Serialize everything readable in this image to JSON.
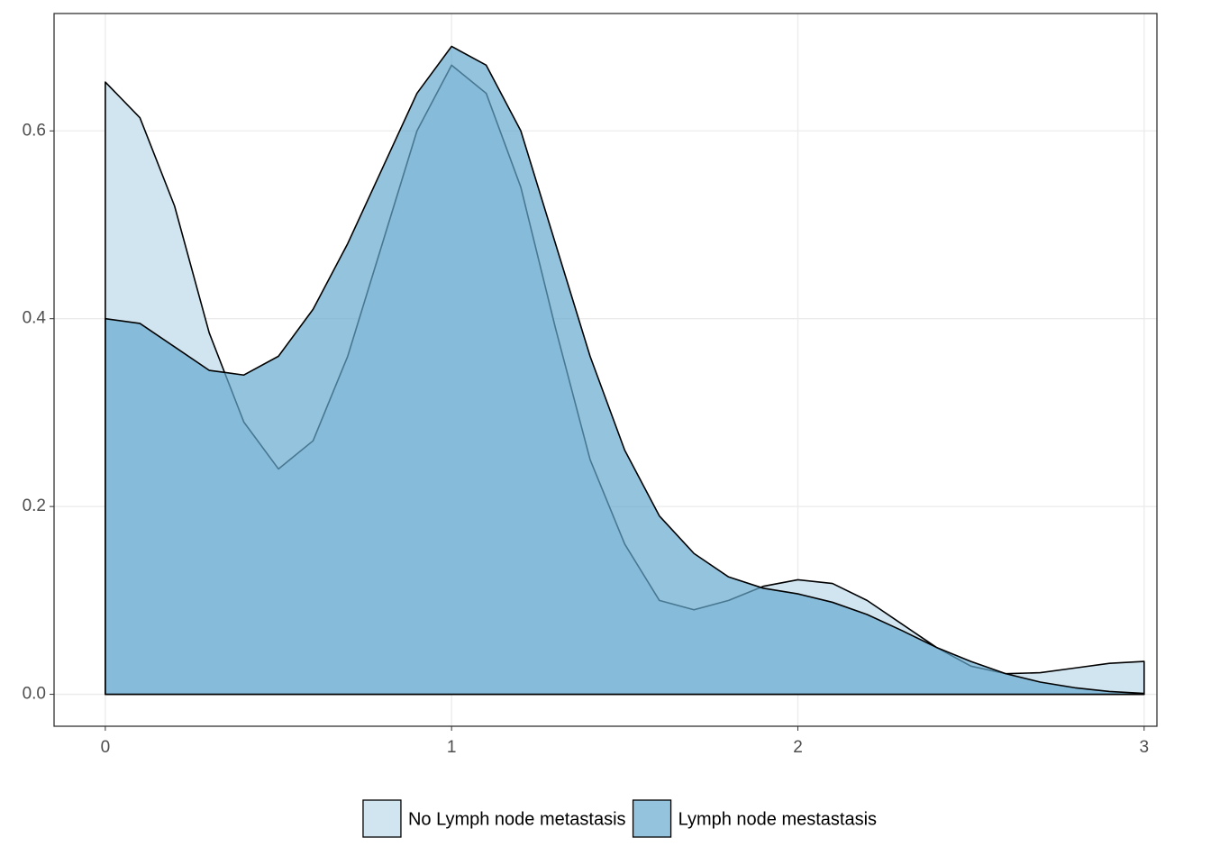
{
  "chart_data": {
    "type": "area",
    "x": [
      0,
      0.1,
      0.2,
      0.3,
      0.4,
      0.5,
      0.6,
      0.7,
      0.8,
      0.9,
      1.0,
      1.1,
      1.2,
      1.3,
      1.4,
      1.5,
      1.6,
      1.7,
      1.8,
      1.9,
      2.0,
      2.1,
      2.2,
      2.3,
      2.4,
      2.5,
      2.6,
      2.7,
      2.8,
      2.9,
      3.0
    ],
    "series": [
      {
        "name": "No Lymph node metastasis",
        "color": "#d1e5f0",
        "values": [
          0.652,
          0.614,
          0.52,
          0.385,
          0.29,
          0.24,
          0.27,
          0.36,
          0.48,
          0.6,
          0.67,
          0.64,
          0.54,
          0.39,
          0.25,
          0.16,
          0.1,
          0.09,
          0.1,
          0.115,
          0.122,
          0.118,
          0.1,
          0.075,
          0.05,
          0.03,
          0.022,
          0.023,
          0.028,
          0.033,
          0.035
        ]
      },
      {
        "name": "Lymph node mestastasis",
        "color": "#67a9cf",
        "values": [
          0.4,
          0.395,
          0.37,
          0.345,
          0.34,
          0.36,
          0.41,
          0.48,
          0.56,
          0.64,
          0.69,
          0.67,
          0.6,
          0.48,
          0.36,
          0.26,
          0.19,
          0.15,
          0.125,
          0.113,
          0.107,
          0.098,
          0.085,
          0.068,
          0.05,
          0.035,
          0.022,
          0.013,
          0.007,
          0.003,
          0.001
        ]
      }
    ],
    "xlim": [
      -0.148,
      3.037
    ],
    "ylim": [
      -0.034,
      0.725
    ],
    "xticks": [
      0,
      1,
      2,
      3
    ],
    "yticks": [
      {
        "value": 0,
        "label": "0.0"
      },
      0.2,
      0.4,
      0.6
    ],
    "grid": true,
    "legend": "bottom"
  }
}
